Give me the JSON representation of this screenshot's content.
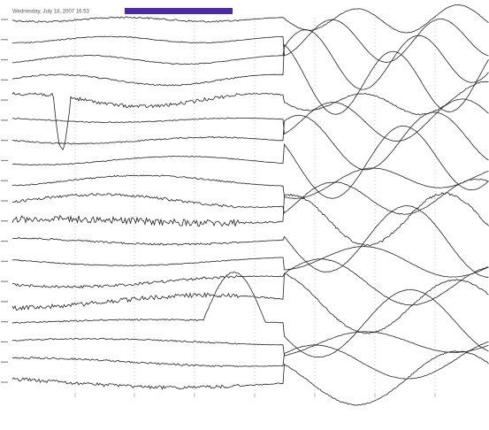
{
  "header": {
    "title": "Wednesday, July 18, 2007 16:53"
  }
}
